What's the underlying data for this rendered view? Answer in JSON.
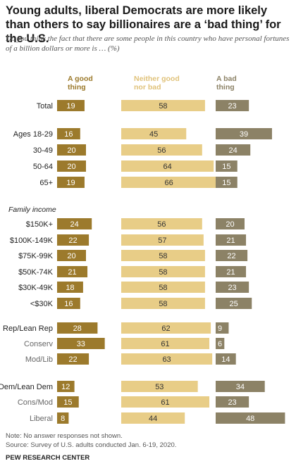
{
  "title": "Young adults, liberal Democrats are more likely than others to say billionaires are a ‘bad thing’ for the U.S.",
  "subtitle": "Do you think the fact that there are some people in this country who have personal fortunes of a billion dollars or more is … (%)",
  "colors": {
    "good": "#9c7a2c",
    "neither": "#e8cd87",
    "bad": "#8c8266"
  },
  "chart_data": {
    "type": "bar",
    "layout": "stacked-columns",
    "series": [
      {
        "name": "A good thing",
        "key": "good"
      },
      {
        "name": "Neither good nor bad",
        "key": "neither"
      },
      {
        "name": "A bad thing",
        "key": "bad"
      }
    ],
    "rows": [
      {
        "label": "Total",
        "good": 19,
        "neither": 58,
        "bad": 23
      },
      {
        "label": "Ages 18-29",
        "good": 16,
        "neither": 45,
        "bad": 39
      },
      {
        "label": "30-49",
        "good": 20,
        "neither": 56,
        "bad": 24
      },
      {
        "label": "50-64",
        "good": 20,
        "neither": 64,
        "bad": 15
      },
      {
        "label": "65+",
        "good": 19,
        "neither": 66,
        "bad": 15
      },
      {
        "label": "Family income",
        "header": true
      },
      {
        "label": "$150K+",
        "good": 24,
        "neither": 56,
        "bad": 20
      },
      {
        "label": "$100K-149K",
        "good": 22,
        "neither": 57,
        "bad": 21
      },
      {
        "label": "$75K-99K",
        "good": 20,
        "neither": 58,
        "bad": 22
      },
      {
        "label": "$50K-74K",
        "good": 21,
        "neither": 58,
        "bad": 21
      },
      {
        "label": "$30K-49K",
        "good": 18,
        "neither": 58,
        "bad": 23
      },
      {
        "label": "<$30K",
        "good": 16,
        "neither": 58,
        "bad": 25
      },
      {
        "label": "Rep/Lean Rep",
        "good": 28,
        "neither": 62,
        "bad": 9
      },
      {
        "label": "Conserv",
        "good": 33,
        "neither": 61,
        "bad": 6,
        "sub": true
      },
      {
        "label": "Mod/Lib",
        "good": 22,
        "neither": 63,
        "bad": 14,
        "sub": true
      },
      {
        "label": "Dem/Lean Dem",
        "good": 12,
        "neither": 53,
        "bad": 34
      },
      {
        "label": "Cons/Mod",
        "good": 15,
        "neither": 61,
        "bad": 23,
        "sub": true
      },
      {
        "label": "Liberal",
        "good": 8,
        "neither": 44,
        "bad": 48,
        "sub": true
      }
    ]
  },
  "headers": {
    "good": "A good thing",
    "neither": "Neither good nor bad",
    "bad": "A bad thing"
  },
  "note": "Note: No answer responses not shown.",
  "source": "Source: Survey of U.S. adults conducted Jan. 6-19, 2020.",
  "brand": "PEW RESEARCH CENTER"
}
